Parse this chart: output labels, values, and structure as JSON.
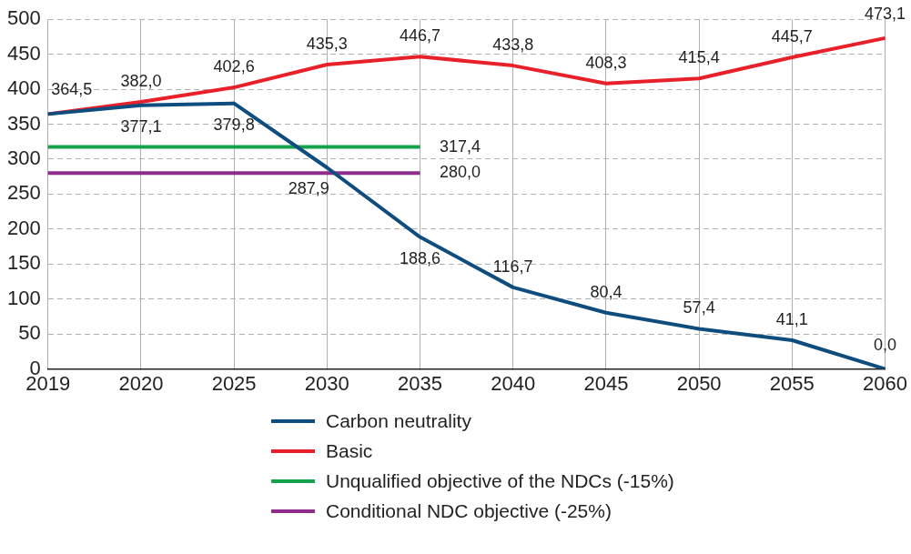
{
  "chart_data": {
    "type": "line",
    "categories": [
      "2019",
      "2020",
      "2025",
      "2030",
      "2035",
      "2040",
      "2045",
      "2050",
      "2055",
      "2060"
    ],
    "series": [
      {
        "name": "Carbon neutrality",
        "color": "#0e4d7e",
        "values": [
          364.5,
          377.1,
          379.8,
          287.9,
          188.6,
          116.7,
          80.4,
          57.4,
          41.1,
          0.0
        ],
        "value_labels": [
          null,
          "377,1",
          "379,8",
          "287,9",
          "188,6",
          "116,7",
          "80,4",
          "57,4",
          "41,1",
          "0,0"
        ]
      },
      {
        "name": "Basic",
        "color": "#e8202a",
        "values": [
          364.5,
          382.0,
          402.6,
          435.3,
          446.7,
          433.8,
          408.3,
          415.4,
          445.7,
          473.1
        ],
        "value_labels": [
          "364,5",
          "382,0",
          "402,6",
          "435,3",
          "446,7",
          "433,8",
          "408,3",
          "415,4",
          "445,7",
          "473,1"
        ]
      },
      {
        "name": "Unqualified objective of the NDCs (-15%)",
        "color": "#14a24a",
        "values": [
          317.4,
          317.4,
          317.4,
          317.4,
          317.4,
          null,
          null,
          null,
          null,
          null
        ],
        "value_labels": [
          null,
          null,
          null,
          null,
          "317,4",
          null,
          null,
          null,
          null,
          null
        ]
      },
      {
        "name": "Conditional NDC objective (-25%)",
        "color": "#8e2c8e",
        "values": [
          280.0,
          280.0,
          280.0,
          280.0,
          280.0,
          null,
          null,
          null,
          null,
          null
        ],
        "value_labels": [
          null,
          null,
          null,
          null,
          "280,0",
          null,
          null,
          null,
          null,
          null
        ]
      }
    ],
    "ylim": [
      0,
      500
    ],
    "yticks": [
      0,
      50,
      100,
      150,
      200,
      250,
      300,
      350,
      400,
      450,
      500
    ],
    "grid": true,
    "legend": "bottom",
    "marker": "none",
    "line_style": "solid"
  }
}
